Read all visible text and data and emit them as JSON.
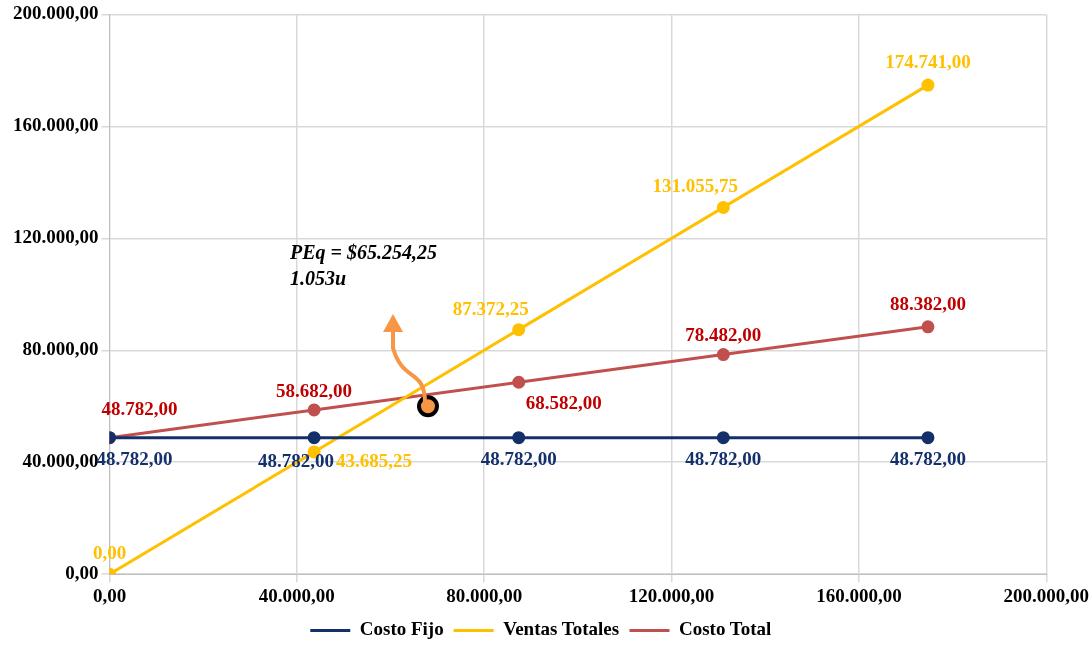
{
  "chart_data": {
    "type": "line",
    "x": [
      0,
      43685.25,
      87372.25,
      131055.75,
      174741
    ],
    "series": [
      {
        "name": "Costo Fijo",
        "color": "#14306b",
        "values": [
          48782,
          48782,
          48782,
          48782,
          48782
        ],
        "value_labels": [
          "48.782,00",
          "48.782,00",
          "48.782,00",
          "48.782,00",
          "48.782,00"
        ]
      },
      {
        "name": "Ventas Totales",
        "color": "#ffc000",
        "values": [
          0,
          43685.25,
          87372.25,
          131055.75,
          174741
        ],
        "value_labels": [
          "0,00",
          "43.685,25",
          "87.372,25",
          "131.055,75",
          "174.741,00"
        ]
      },
      {
        "name": "Costo Total",
        "color": "#c0504d",
        "values": [
          48782,
          58682,
          68582,
          78482,
          88382
        ],
        "value_labels": [
          "48.782,00",
          "58.682,00",
          "68.582,00",
          "78.482,00",
          "88.382,00"
        ]
      },
      {
        "type": "scatter",
        "color": "#f79646",
        "x": [
          68000
        ],
        "values": [
          60000
        ]
      }
    ],
    "xlim": [
      0,
      200000
    ],
    "ylim": [
      0,
      200000
    ],
    "xticks": [
      {
        "value": 0,
        "label": "0,00"
      },
      {
        "value": 40000,
        "label": "40.000,00"
      },
      {
        "value": 80000,
        "label": "80.000,00"
      },
      {
        "value": 120000,
        "label": "120.000,00"
      },
      {
        "value": 160000,
        "label": "160.000,00"
      },
      {
        "value": 200000,
        "label": "200.000,00"
      }
    ],
    "yticks": [
      {
        "value": 0,
        "label": "0,00"
      },
      {
        "value": 40000,
        "label": "40.000,00"
      },
      {
        "value": 80000,
        "label": "80.000,00"
      },
      {
        "value": 120000,
        "label": "120.000,00"
      },
      {
        "value": 160000,
        "label": "160.000,00"
      },
      {
        "value": 200000,
        "label": "200.000,00"
      }
    ],
    "annotations": [
      "PEq = $65.254,25\n1.053u"
    ],
    "grid": true,
    "legend": "bottom",
    "marker": "circle",
    "line_style": "solid"
  }
}
